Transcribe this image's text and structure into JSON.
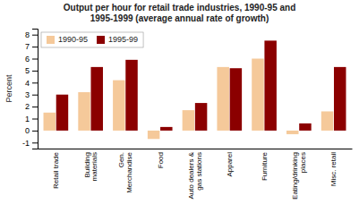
{
  "chart_data": {
    "type": "bar",
    "title": "Output per hour for retail trade industries, 1990-95 and\n1995-1999 (average annual rate of growth)",
    "categories": [
      "Retail trade",
      "Building\nmaterials",
      "Gen.\nMerchandise",
      "Food",
      "Auto dealers &\ngas stations",
      "Apparel",
      "Furniture",
      "Eating/drinking\nplaces",
      "Misc. retail"
    ],
    "series": [
      {
        "name": "1990-95",
        "color": "#F5C99A",
        "values": [
          1.5,
          3.2,
          4.2,
          -0.7,
          1.7,
          5.3,
          6.0,
          -0.3,
          1.6
        ]
      },
      {
        "name": "1995-99",
        "color": "#8B0000",
        "values": [
          3.0,
          5.3,
          5.9,
          0.3,
          2.3,
          5.2,
          7.5,
          0.6,
          5.3
        ]
      }
    ],
    "ylabel": "Percent",
    "ylim": [
      -1.5,
      8.5
    ],
    "yticks": [
      -1,
      0,
      1,
      2,
      3,
      4,
      5,
      6,
      7,
      8
    ],
    "legend": "upper left",
    "grid": false
  }
}
